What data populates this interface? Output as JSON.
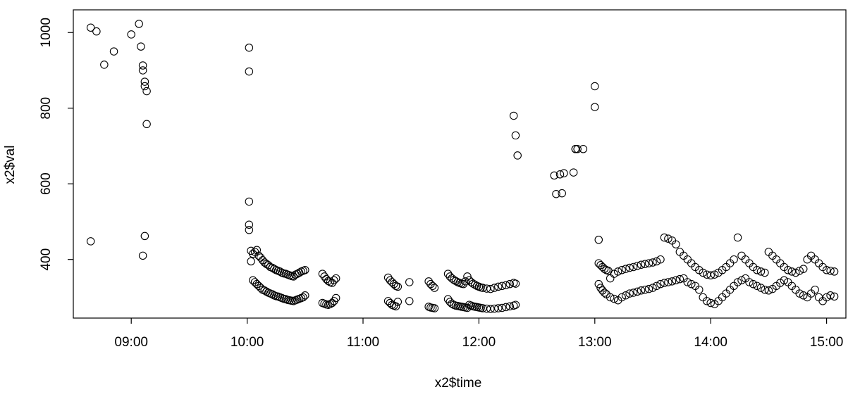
{
  "chart_data": {
    "type": "scatter",
    "title": "",
    "xlabel": "x2$time",
    "ylabel": "x2$val",
    "xlim": [
      "08:30",
      "15:10"
    ],
    "ylim": [
      245,
      1060
    ],
    "x_ticks": [
      "09:00",
      "10:00",
      "11:00",
      "12:00",
      "13:00",
      "14:00",
      "15:00"
    ],
    "y_ticks": [
      400,
      600,
      800,
      1000
    ],
    "grid": false,
    "legend": "none",
    "marker": "open-circle",
    "color": "#000000",
    "series": [
      {
        "x": [
          "08:39",
          "08:42",
          "08:46",
          "08:51",
          "09:00",
          "09:04",
          "09:05",
          "09:06",
          "09:06",
          "09:07",
          "09:07",
          "09:08",
          "09:08",
          "08:39",
          "09:07",
          "09:06"
        ],
        "y": [
          1013,
          1003,
          915,
          950,
          995,
          1023,
          963,
          900,
          913,
          870,
          858,
          845,
          758,
          448,
          462,
          410
        ]
      },
      {
        "x": [
          "10:01",
          "10:01",
          "10:01",
          "10:01",
          "10:01",
          "10:02",
          "10:02",
          "10:03",
          "10:04",
          "10:05",
          "10:06",
          "10:07",
          "10:08",
          "10:09",
          "10:10",
          "10:11",
          "10:12",
          "10:13",
          "10:14",
          "10:15",
          "10:16",
          "10:17",
          "10:18",
          "10:19",
          "10:20",
          "10:21",
          "10:22",
          "10:23",
          "10:24",
          "10:25",
          "10:26",
          "10:27",
          "10:28",
          "10:29",
          "10:30",
          "10:03",
          "10:04",
          "10:05",
          "10:06",
          "10:07",
          "10:08",
          "10:09",
          "10:10",
          "10:11",
          "10:12",
          "10:13",
          "10:14",
          "10:15",
          "10:16",
          "10:17",
          "10:18",
          "10:19",
          "10:20",
          "10:21",
          "10:22",
          "10:23",
          "10:24",
          "10:25",
          "10:26",
          "10:27",
          "10:28",
          "10:29",
          "10:30"
        ],
        "y": [
          960,
          897,
          553,
          492,
          478,
          423,
          395,
          415,
          420,
          425,
          410,
          405,
          398,
          392,
          388,
          385,
          380,
          378,
          375,
          372,
          370,
          368,
          365,
          363,
          362,
          360,
          358,
          356,
          355,
          360,
          362,
          365,
          368,
          370,
          372,
          345,
          340,
          335,
          330,
          325,
          320,
          318,
          315,
          312,
          310,
          308,
          305,
          303,
          302,
          300,
          298,
          296,
          295,
          293,
          292,
          291,
          290,
          292,
          294,
          296,
          298,
          300,
          305
        ]
      },
      {
        "x": [
          "10:39",
          "10:40",
          "10:41",
          "10:42",
          "10:43",
          "10:44",
          "10:45",
          "10:46",
          "10:39",
          "10:40",
          "10:41",
          "10:42",
          "10:43",
          "10:44",
          "10:45",
          "10:46"
        ],
        "y": [
          362,
          355,
          348,
          343,
          340,
          338,
          345,
          350,
          285,
          283,
          281,
          280,
          282,
          285,
          290,
          298
        ]
      },
      {
        "x": [
          "11:13",
          "11:14",
          "11:15",
          "11:16",
          "11:17",
          "11:18",
          "11:24",
          "11:13",
          "11:14",
          "11:15",
          "11:16",
          "11:17",
          "11:18",
          "11:24"
        ],
        "y": [
          352,
          345,
          340,
          335,
          330,
          328,
          340,
          290,
          285,
          280,
          278,
          276,
          288,
          290
        ]
      },
      {
        "x": [
          "11:34",
          "11:35",
          "11:36",
          "11:37",
          "11:34",
          "11:35",
          "11:36",
          "11:37"
        ],
        "y": [
          342,
          335,
          330,
          325,
          275,
          273,
          272,
          271
        ]
      },
      {
        "x": [
          "11:44",
          "11:45",
          "11:46",
          "11:47",
          "11:48",
          "11:49",
          "11:50",
          "11:51",
          "11:52",
          "11:53",
          "11:54",
          "11:55",
          "11:56",
          "11:57",
          "11:58",
          "11:59",
          "12:00",
          "12:01",
          "12:02",
          "12:04",
          "12:06",
          "12:08",
          "12:10",
          "12:12",
          "12:14",
          "12:16",
          "12:18",
          "12:19",
          "11:44",
          "11:45",
          "11:46",
          "11:47",
          "11:48",
          "11:49",
          "11:50",
          "11:51",
          "11:52",
          "11:53",
          "11:54",
          "11:55",
          "11:56",
          "11:57",
          "11:58",
          "11:59",
          "12:00",
          "12:01",
          "12:02",
          "12:04",
          "12:06",
          "12:08",
          "12:10",
          "12:12",
          "12:14",
          "12:16",
          "12:18",
          "12:19"
        ],
        "y": [
          362,
          355,
          350,
          346,
          343,
          340,
          338,
          336,
          335,
          342,
          355,
          345,
          340,
          336,
          333,
          330,
          328,
          326,
          325,
          323,
          322,
          325,
          328,
          330,
          332,
          335,
          338,
          336,
          295,
          288,
          283,
          280,
          278,
          277,
          276,
          275,
          274,
          273,
          272,
          280,
          278,
          276,
          275,
          274,
          273,
          272,
          271,
          270,
          269,
          270,
          271,
          272,
          274,
          276,
          278,
          280
        ]
      },
      {
        "x": [
          "12:18",
          "12:19",
          "12:20",
          "12:39",
          "12:40",
          "12:42",
          "12:43",
          "12:44",
          "12:49",
          "12:50",
          "12:50",
          "12:51",
          "12:54",
          "13:00",
          "13:00",
          "13:02"
        ],
        "y": [
          780,
          728,
          675,
          622,
          573,
          625,
          575,
          628,
          630,
          692,
          692,
          692,
          692,
          858,
          803,
          452
        ]
      },
      {
        "x": [
          "13:02",
          "13:03",
          "13:04",
          "13:05",
          "13:06",
          "13:07",
          "13:08",
          "13:10",
          "13:12",
          "13:14",
          "13:16",
          "13:18",
          "13:20",
          "13:22",
          "13:24",
          "13:26",
          "13:28",
          "13:30",
          "13:32",
          "13:34",
          "13:36",
          "13:38",
          "13:40",
          "13:42",
          "13:44",
          "13:46",
          "13:48",
          "13:50",
          "13:52",
          "13:54",
          "13:56",
          "13:58",
          "14:00",
          "14:02",
          "14:04",
          "14:06",
          "14:08",
          "14:10",
          "14:12",
          "14:14",
          "14:16",
          "14:18",
          "14:20",
          "14:22",
          "14:24",
          "14:26",
          "14:28",
          "14:30",
          "14:32",
          "14:34",
          "14:36",
          "14:38",
          "14:40",
          "14:42",
          "14:44",
          "14:46",
          "14:48",
          "14:50",
          "14:52",
          "14:54",
          "14:56",
          "14:58",
          "15:00",
          "15:02",
          "15:04"
        ],
        "y": [
          390,
          385,
          380,
          375,
          372,
          370,
          350,
          362,
          368,
          372,
          375,
          378,
          380,
          383,
          386,
          388,
          390,
          392,
          395,
          400,
          458,
          455,
          450,
          440,
          420,
          410,
          400,
          390,
          380,
          372,
          365,
          360,
          358,
          360,
          365,
          372,
          380,
          390,
          400,
          458,
          410,
          400,
          390,
          380,
          372,
          368,
          365,
          420,
          410,
          400,
          390,
          380,
          372,
          368,
          365,
          370,
          375,
          400,
          410,
          400,
          390,
          380,
          372,
          370,
          368
        ]
      },
      {
        "x": [
          "13:02",
          "13:03",
          "13:04",
          "13:05",
          "13:06",
          "13:08",
          "13:10",
          "13:12",
          "13:14",
          "13:16",
          "13:18",
          "13:20",
          "13:22",
          "13:24",
          "13:26",
          "13:28",
          "13:30",
          "13:32",
          "13:34",
          "13:36",
          "13:38",
          "13:40",
          "13:42",
          "13:44",
          "13:46",
          "13:48",
          "13:50",
          "13:52",
          "13:54",
          "13:56",
          "13:58",
          "14:00",
          "14:02",
          "14:04",
          "14:06",
          "14:08",
          "14:10",
          "14:12",
          "14:14",
          "14:16",
          "14:18",
          "14:20",
          "14:22",
          "14:24",
          "14:26",
          "14:28",
          "14:30",
          "14:32",
          "14:34",
          "14:36",
          "14:38",
          "14:40",
          "14:42",
          "14:44",
          "14:46",
          "14:48",
          "14:50",
          "14:52",
          "14:54",
          "14:56",
          "14:58",
          "15:00",
          "15:02",
          "15:04"
        ],
        "y": [
          335,
          325,
          318,
          312,
          308,
          300,
          296,
          292,
          300,
          305,
          310,
          312,
          315,
          318,
          320,
          322,
          325,
          330,
          335,
          338,
          340,
          342,
          345,
          348,
          350,
          340,
          335,
          330,
          320,
          300,
          290,
          285,
          282,
          290,
          300,
          310,
          320,
          330,
          340,
          345,
          350,
          340,
          335,
          330,
          325,
          320,
          318,
          322,
          330,
          338,
          345,
          340,
          330,
          320,
          310,
          305,
          300,
          310,
          320,
          300,
          290,
          300,
          305,
          302
        ]
      }
    ]
  }
}
